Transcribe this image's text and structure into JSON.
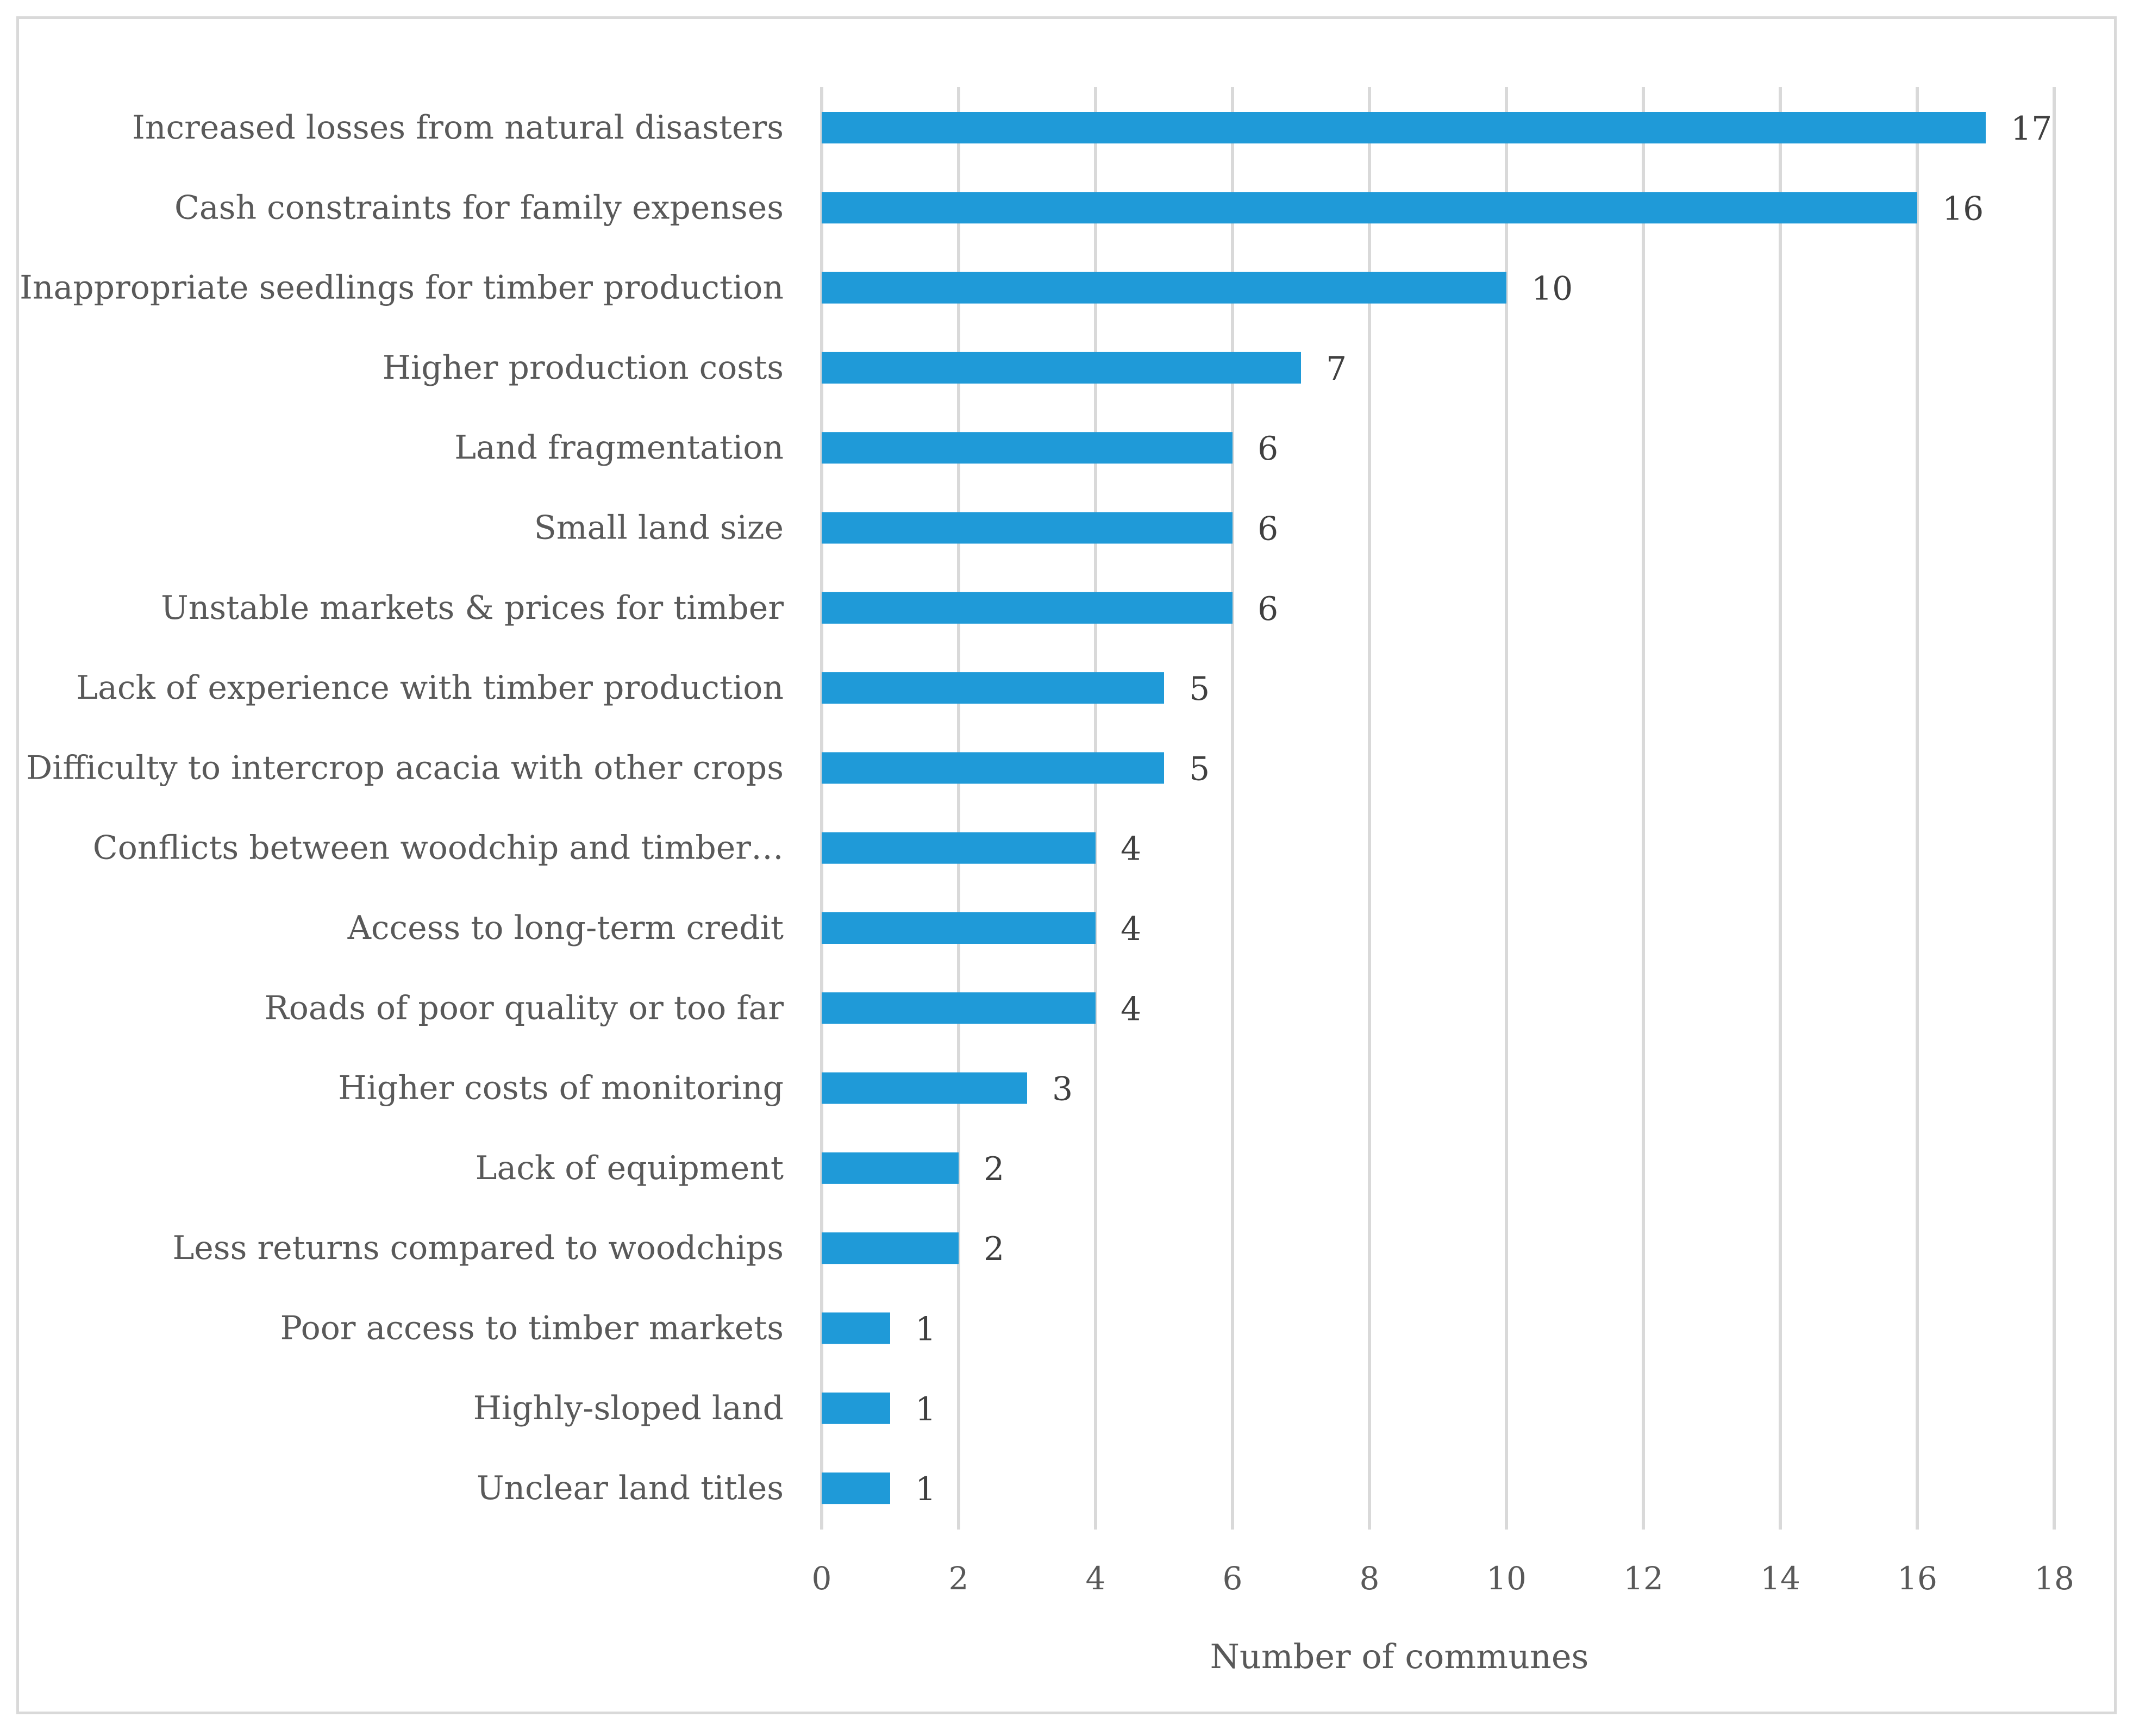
{
  "chart_data": {
    "type": "bar",
    "orientation": "horizontal",
    "title": "",
    "xlabel": "Number of communes",
    "ylabel": "",
    "xlim": [
      0,
      18
    ],
    "xticks": [
      0,
      2,
      4,
      6,
      8,
      10,
      12,
      14,
      16,
      18
    ],
    "grid": "vertical",
    "legend": "none",
    "bar_color": "#1f9ad8",
    "categories": [
      "Increased losses from natural disasters",
      "Cash constraints for family expenses",
      "Inappropriate seedlings for timber production",
      "Higher production costs",
      "Land fragmentation",
      "Small land size",
      "Unstable markets & prices for timber",
      "Lack of experience with timber production",
      "Difficulty to intercrop acacia with other crops",
      "Conflicts between woodchip and timber…",
      "Access to long-term credit",
      "Roads of poor quality or too far",
      "Higher costs of monitoring",
      "Lack of equipment",
      "Less returns compared to woodchips",
      "Poor access to timber markets",
      "Highly-sloped land",
      "Unclear land titles"
    ],
    "values": [
      17,
      16,
      10,
      7,
      6,
      6,
      6,
      5,
      5,
      4,
      4,
      4,
      3,
      2,
      2,
      1,
      1,
      1
    ]
  }
}
